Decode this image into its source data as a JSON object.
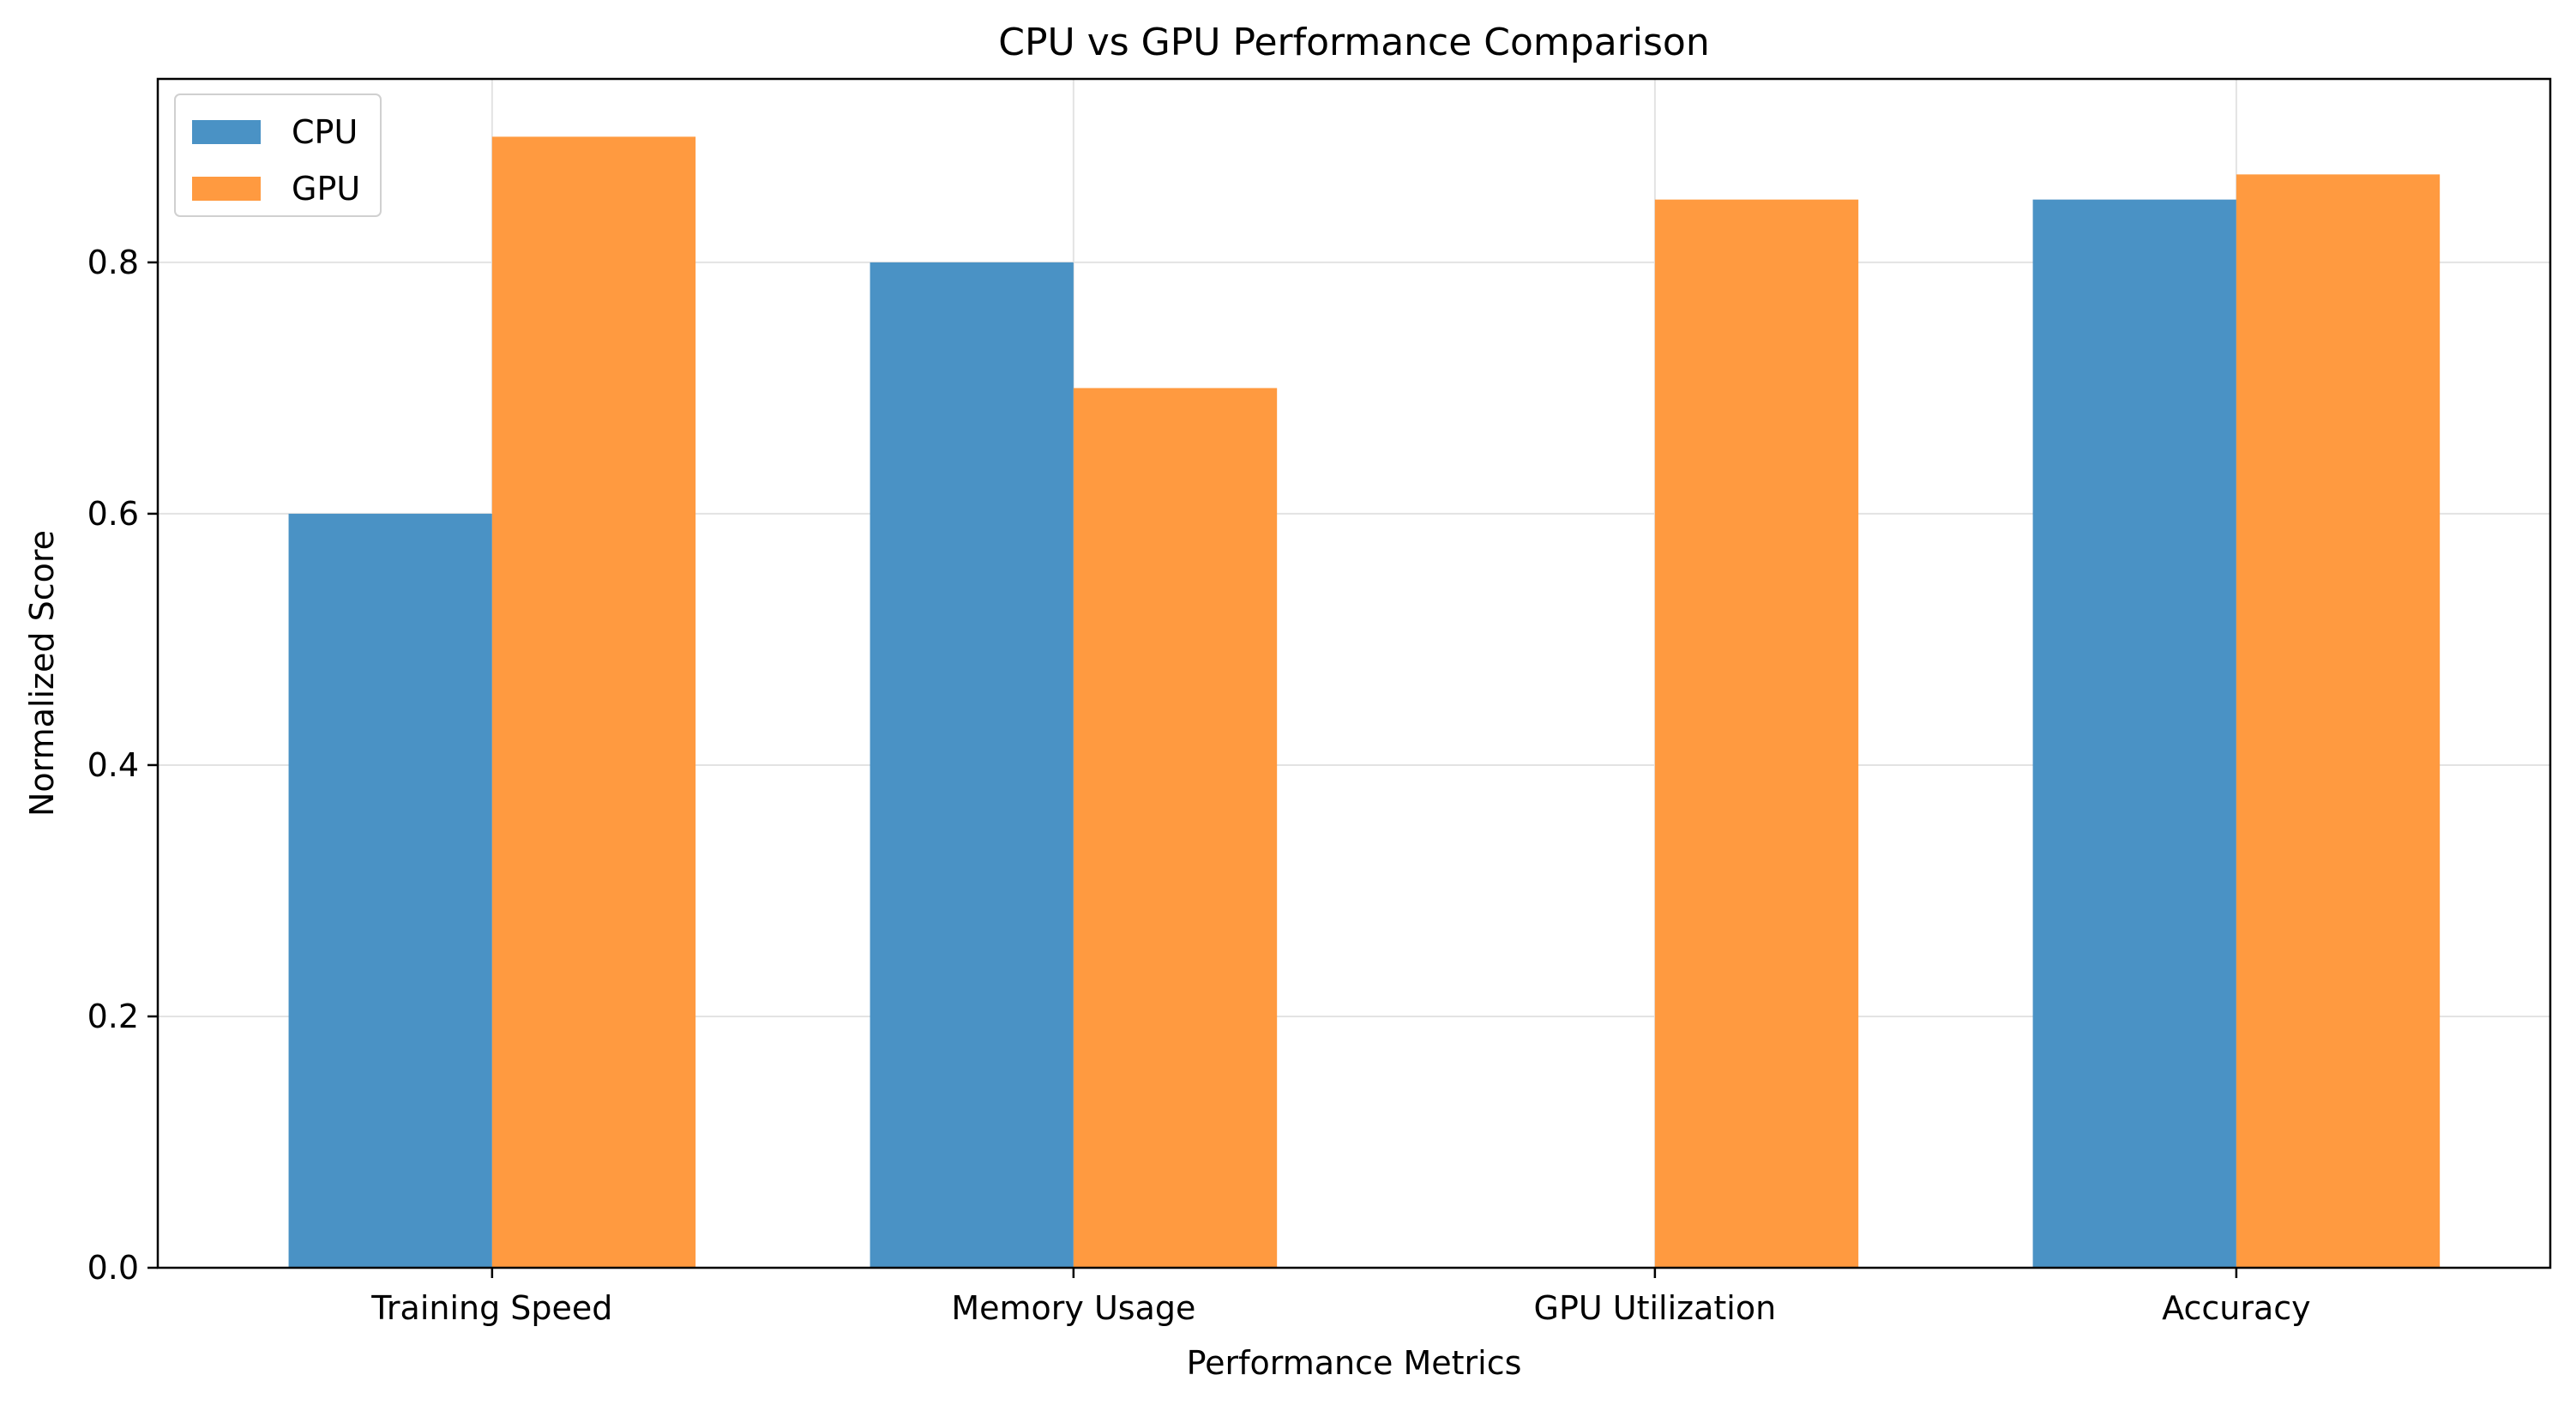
{
  "chart_data": {
    "type": "bar",
    "title": "CPU vs GPU Performance Comparison",
    "xlabel": "Performance Metrics",
    "ylabel": "Normalized Score",
    "categories": [
      "Training Speed",
      "Memory Usage",
      "GPU Utilization",
      "Accuracy"
    ],
    "series": [
      {
        "name": "CPU",
        "values": [
          0.6,
          0.8,
          0,
          0.85
        ],
        "color": "#4a92c5"
      },
      {
        "name": "GPU",
        "values": [
          0.9,
          0.7,
          0.85,
          0.87
        ],
        "color": "#ff9a40"
      }
    ],
    "ylim": [
      0,
      0.946
    ],
    "yticks": [
      0.0,
      0.2,
      0.4,
      0.6,
      0.8
    ],
    "ytick_labels": [
      "0.0",
      "0.2",
      "0.4",
      "0.6",
      "0.8"
    ],
    "grid": true,
    "legend_position": "top-left"
  }
}
